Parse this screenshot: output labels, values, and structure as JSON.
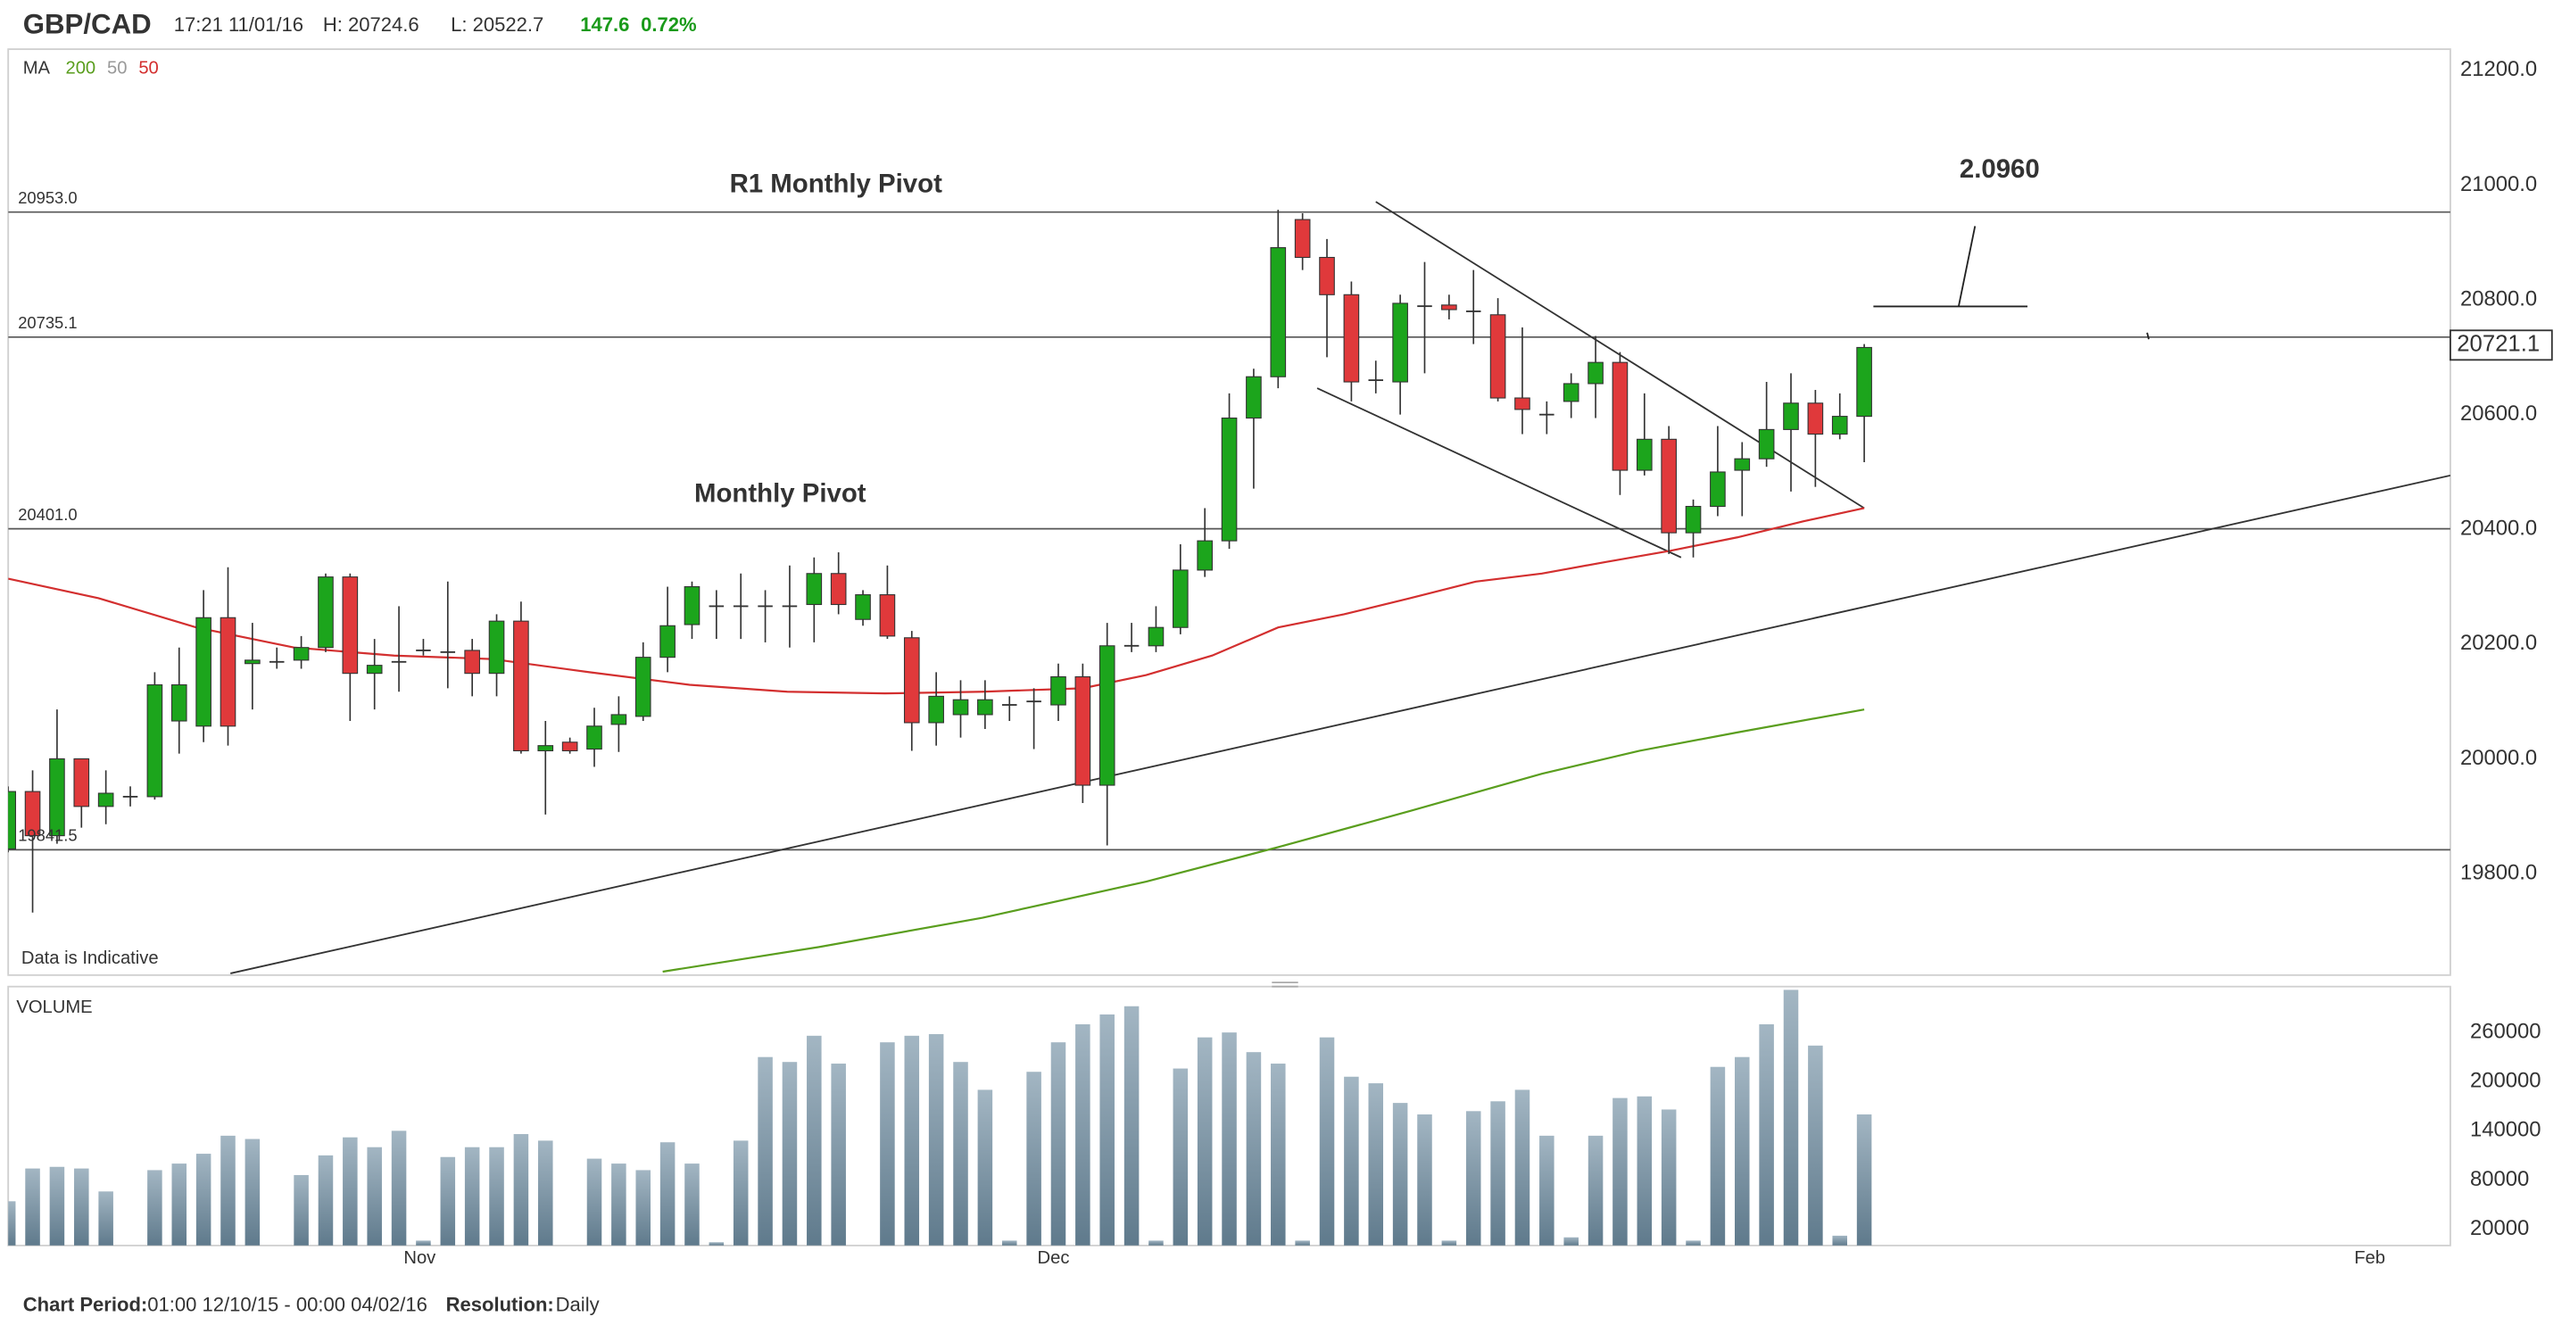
{
  "header": {
    "symbol": "GBP/CAD",
    "time": "17:21 11/01/16",
    "high": "H: 20724.6",
    "low": "L: 20522.7",
    "change": "147.6",
    "change_pct": "0.72%"
  },
  "chart_data": {
    "type": "candlestick",
    "x": [
      0,
      1,
      2,
      3,
      4,
      5,
      6,
      7,
      8,
      9,
      10,
      11,
      12,
      13,
      14,
      15,
      16,
      17,
      18,
      19,
      20,
      21,
      22,
      23,
      24,
      25,
      26,
      27,
      28,
      29,
      30,
      31,
      32,
      33,
      34,
      35,
      36,
      37,
      38,
      39,
      40,
      41,
      42,
      43,
      44,
      45,
      46,
      47,
      48,
      49,
      50,
      51,
      52,
      53,
      54,
      55,
      56,
      57,
      58,
      59,
      60,
      61,
      62,
      63,
      64,
      65,
      66,
      67,
      68,
      69,
      70,
      71,
      72,
      73,
      74,
      75,
      76
    ],
    "open": [
      19843,
      19943,
      19866,
      20000,
      19917,
      19934,
      19934,
      20066,
      20057,
      20246,
      20166,
      20169,
      20172,
      20194,
      20317,
      20149,
      20169,
      20189,
      20186,
      20189,
      20149,
      20240,
      20014,
      20029,
      20017,
      20060,
      20074,
      20177,
      20234,
      20266,
      20266,
      20266,
      20266,
      20269,
      20323,
      20243,
      20286,
      20211,
      20063,
      20077,
      20077,
      20094,
      20100,
      20094,
      20143,
      19954,
      20197,
      20197,
      20229,
      20329,
      20380,
      20594,
      20666,
      20940,
      20874,
      20809,
      20660,
      20657,
      20789,
      20791,
      20780,
      20774,
      20629,
      20600,
      20623,
      20654,
      20691,
      20503,
      20557,
      20394,
      20440,
      20503,
      20523,
      20574,
      20620,
      20566,
      20597
    ],
    "high": [
      19952,
      19980,
      20086,
      20000,
      19980,
      19952,
      20151,
      20194,
      20294,
      20334,
      20237,
      20194,
      20214,
      20323,
      20323,
      20209,
      20266,
      20209,
      20309,
      20209,
      20252,
      20274,
      20066,
      20037,
      20089,
      20109,
      20203,
      20300,
      20309,
      20294,
      20323,
      20294,
      20337,
      20351,
      20360,
      20294,
      20337,
      20223,
      20151,
      20137,
      20137,
      20109,
      20123,
      20166,
      20166,
      20237,
      20237,
      20266,
      20374,
      20437,
      20637,
      20680,
      20957,
      20951,
      20906,
      20832,
      20694,
      20809,
      20866,
      20809,
      20852,
      20803,
      20752,
      20623,
      20672,
      20737,
      20709,
      20637,
      20580,
      20452,
      20580,
      20552,
      20657,
      20672,
      20643,
      20637,
      20723
    ],
    "low": [
      19837,
      19732,
      19852,
      19880,
      19886,
      19917,
      19929,
      20009,
      20029,
      20023,
      20086,
      20157,
      20157,
      20186,
      20066,
      20086,
      20117,
      20180,
      20123,
      20109,
      20109,
      20009,
      19903,
      20009,
      19986,
      20012,
      20066,
      20151,
      20209,
      20209,
      20209,
      20203,
      20194,
      20203,
      20252,
      20232,
      20209,
      20014,
      20023,
      20037,
      20052,
      20066,
      20017,
      20066,
      19923,
      19849,
      20186,
      20186,
      20217,
      20317,
      20366,
      20471,
      20646,
      20852,
      20700,
      20623,
      20637,
      20600,
      20672,
      20766,
      20723,
      20623,
      20566,
      20566,
      20594,
      20594,
      20460,
      20494,
      20357,
      20351,
      20423,
      20423,
      20509,
      20466,
      20474,
      20557,
      20517
    ],
    "close": [
      19943,
      19866,
      20000,
      19917,
      19940,
      19934,
      20129,
      20129,
      20246,
      20057,
      20172,
      20169,
      20194,
      20317,
      20149,
      20163,
      20169,
      20189,
      20186,
      20149,
      20240,
      20014,
      20023,
      20014,
      20057,
      20077,
      20177,
      20232,
      20300,
      20266,
      20266,
      20266,
      20266,
      20323,
      20269,
      20286,
      20214,
      20063,
      20109,
      20103,
      20103,
      20094,
      20100,
      20143,
      19954,
      20197,
      20197,
      20229,
      20329,
      20380,
      20594,
      20666,
      20891,
      20874,
      20809,
      20657,
      20660,
      20794,
      20789,
      20783,
      20780,
      20629,
      20609,
      20600,
      20654,
      20691,
      20503,
      20557,
      20394,
      20440,
      20500,
      20523,
      20574,
      20620,
      20566,
      20597,
      20717
    ],
    "up_color": "#1ca51c",
    "down_color": "#e0393b",
    "doji_color": "#333333",
    "xlim": [
      0,
      100
    ],
    "xticks": [
      {
        "value": 16.85,
        "label": "Nov"
      },
      {
        "value": 42.8,
        "label": "Dec"
      },
      {
        "value": 96.7,
        "label": "Feb"
      }
    ],
    "ylim": [
      19623,
      21237
    ],
    "yticks": [
      {
        "value": 19800,
        "label": "19800.0"
      },
      {
        "value": 20000,
        "label": "20000.0"
      },
      {
        "value": 20200,
        "label": "20200.0"
      },
      {
        "value": 20400,
        "label": "20400.0"
      },
      {
        "value": 20600,
        "label": "20600.0"
      },
      {
        "value": 20800,
        "label": "20800.0"
      },
      {
        "value": 21000,
        "label": "21000.0"
      },
      {
        "value": 21200,
        "label": "21200.0"
      }
    ],
    "grid": true,
    "last_price": 20721.1,
    "levels": [
      {
        "value": 20953,
        "label": "20953.0"
      },
      {
        "value": 20735.1,
        "label": "20735.1"
      },
      {
        "value": 20401,
        "label": "20401.0"
      },
      {
        "value": 19841.5,
        "label": "19841.5"
      }
    ],
    "trendlines": [
      {
        "x": [
          9.1,
          100
        ],
        "values": [
          19626,
          20494
        ]
      },
      {
        "x": [
          56,
          76
        ],
        "values": [
          20971,
          20437
        ]
      },
      {
        "x": [
          53.6,
          68.5
        ],
        "values": [
          20646,
          20351
        ]
      }
    ],
    "annotations": [
      {
        "text": "R1 Monthly Pivot"
      },
      {
        "text": "Monthly Pivot"
      },
      {
        "text": "2.0960"
      }
    ],
    "moving_averages": {
      "label": "MA",
      "series": [
        {
          "name": "200",
          "color": "#5a9e1e",
          "x": [
            26.8,
            33.2,
            39.9,
            46.6,
            52,
            57.4,
            62.8,
            66.8,
            70.8,
            76
          ],
          "values": [
            19629,
            19672,
            19723,
            19786,
            19846,
            19909,
            19974,
            20014,
            20046,
            20086
          ]
        },
        {
          "name": "50",
          "color": "#999999"
        },
        {
          "name": "50",
          "color": "#d32f2f",
          "x": [
            0,
            3.7,
            7.7,
            11.7,
            15.8,
            19.8,
            23.8,
            27.9,
            31.9,
            35.9,
            39.9,
            44,
            46.6,
            49.3,
            52,
            54.7,
            57.4,
            60.1,
            62.8,
            65.4,
            68.1,
            70.8,
            73.5,
            76
          ],
          "values": [
            20314,
            20280,
            20229,
            20194,
            20180,
            20174,
            20151,
            20129,
            20117,
            20114,
            20117,
            20123,
            20146,
            20180,
            20229,
            20252,
            20280,
            20309,
            20323,
            20343,
            20363,
            20386,
            20414,
            20437
          ]
        }
      ]
    },
    "note": "Data is Indicative",
    "volume": {
      "title": "VOLUME",
      "values": [
        54000,
        94000,
        96000,
        94000,
        66000,
        null,
        92000,
        100000,
        112000,
        134000,
        130000,
        null,
        86000,
        110000,
        132000,
        120000,
        140000,
        6000,
        108000,
        120000,
        120000,
        136000,
        128000,
        null,
        106000,
        100000,
        92000,
        126000,
        100000,
        4000,
        128000,
        230000,
        224000,
        256000,
        222000,
        null,
        248000,
        256000,
        258000,
        224000,
        190000,
        6000,
        212000,
        248000,
        270000,
        282000,
        292000,
        6000,
        216000,
        254000,
        260000,
        236000,
        222000,
        6000,
        254000,
        206000,
        198000,
        174000,
        160000,
        6000,
        164000,
        176000,
        190000,
        134000,
        10000,
        134000,
        180000,
        182000,
        166000,
        6000,
        218000,
        230000,
        270000,
        312000,
        244000,
        12000,
        160000
      ],
      "ylim": [
        0,
        316000
      ],
      "yticks": [
        20000,
        80000,
        140000,
        200000,
        260000
      ]
    }
  },
  "footer": {
    "period_label": "Chart Period:",
    "period": "01:00 12/10/15 - 00:00 04/02/16",
    "resolution_label": "Resolution:",
    "resolution": "Daily"
  }
}
